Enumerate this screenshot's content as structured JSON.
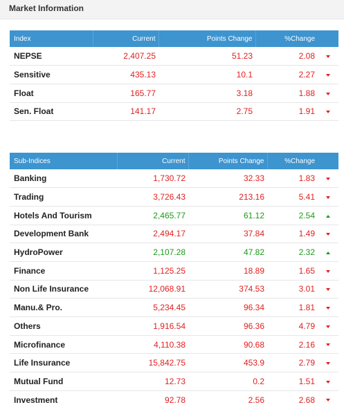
{
  "header": {
    "title": "Market Information"
  },
  "index_table": {
    "columns": [
      "Index",
      "Current",
      "Points Change",
      "%Change"
    ],
    "rows": [
      {
        "name": "NEPSE",
        "current": "2,407.25",
        "points": "51.23",
        "pct": "2.08",
        "dir": "down"
      },
      {
        "name": "Sensitive",
        "current": "435.13",
        "points": "10.1",
        "pct": "2.27",
        "dir": "down"
      },
      {
        "name": "Float",
        "current": "165.77",
        "points": "3.18",
        "pct": "1.88",
        "dir": "down"
      },
      {
        "name": "Sen. Float",
        "current": "141.17",
        "points": "2.75",
        "pct": "1.91",
        "dir": "down"
      }
    ]
  },
  "sub_table": {
    "columns": [
      "Sub-Indices",
      "Current",
      "Points Change",
      "%Change"
    ],
    "rows": [
      {
        "name": "Banking",
        "current": "1,730.72",
        "points": "32.33",
        "pct": "1.83",
        "dir": "down"
      },
      {
        "name": "Trading",
        "current": "3,726.43",
        "points": "213.16",
        "pct": "5.41",
        "dir": "down"
      },
      {
        "name": "Hotels And Tourism",
        "current": "2,465.77",
        "points": "61.12",
        "pct": "2.54",
        "dir": "up"
      },
      {
        "name": "Development Bank",
        "current": "2,494.17",
        "points": "37.84",
        "pct": "1.49",
        "dir": "down"
      },
      {
        "name": "HydroPower",
        "current": "2,107.28",
        "points": "47.82",
        "pct": "2.32",
        "dir": "up"
      },
      {
        "name": "Finance",
        "current": "1,125.25",
        "points": "18.89",
        "pct": "1.65",
        "dir": "down"
      },
      {
        "name": "Non Life Insurance",
        "current": "12,068.91",
        "points": "374.53",
        "pct": "3.01",
        "dir": "down"
      },
      {
        "name": "Manu.& Pro.",
        "current": "5,234.45",
        "points": "96.34",
        "pct": "1.81",
        "dir": "down"
      },
      {
        "name": "Others",
        "current": "1,916.54",
        "points": "96.36",
        "pct": "4.79",
        "dir": "down"
      },
      {
        "name": "Microfinance",
        "current": "4,110.38",
        "points": "90.68",
        "pct": "2.16",
        "dir": "down"
      },
      {
        "name": "Life Insurance",
        "current": "15,842.75",
        "points": "453.9",
        "pct": "2.79",
        "dir": "down"
      },
      {
        "name": "Mutual Fund",
        "current": "12.73",
        "points": "0.2",
        "pct": "1.51",
        "dir": "down"
      },
      {
        "name": "Investment",
        "current": "92.78",
        "points": "2.56",
        "pct": "2.68",
        "dir": "down"
      }
    ]
  },
  "colors": {
    "header_bg": "#3d94cf",
    "down": "#e02020",
    "up": "#1a9a1a",
    "icon_down": "caret-down-icon",
    "icon_up": "caret-up-icon"
  }
}
